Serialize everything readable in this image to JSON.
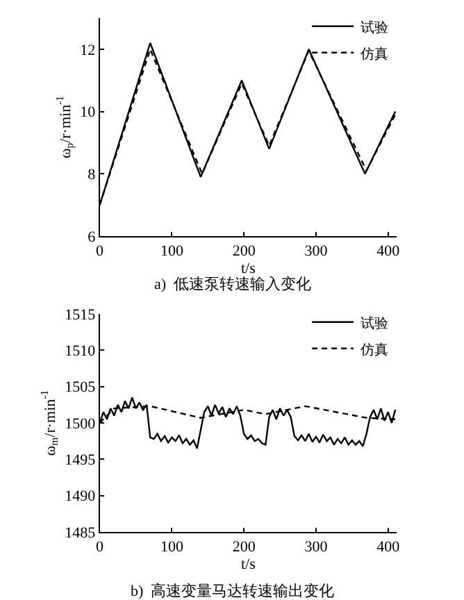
{
  "chart_data": [
    {
      "type": "line",
      "xlabel": "t/s",
      "ylabel": "ω$_{p}$/r·min$^{-1}$",
      "annotations": [
        "a)  低速泵转速输入变化"
      ],
      "xlim": [
        0,
        412
      ],
      "xticks": [
        0,
        100,
        200,
        300,
        400
      ],
      "ylim": [
        6,
        13
      ],
      "yticks": [
        6,
        8,
        10,
        12
      ],
      "legend": "top right",
      "series": [
        {
          "name": "试验",
          "color": "#000000",
          "line_style": "solid",
          "x": [
            0,
            70,
            140,
            197,
            235,
            290,
            368,
            410
          ],
          "values": [
            7,
            12.2,
            7.9,
            11,
            8.8,
            12,
            8,
            10
          ]
        },
        {
          "name": "仿真",
          "color": "#000000",
          "line_style": "dashed",
          "x": [
            0,
            70,
            142,
            197,
            235,
            290,
            370,
            410
          ],
          "values": [
            7,
            12,
            8,
            10.9,
            8.9,
            11.95,
            8.1,
            9.9
          ]
        }
      ]
    },
    {
      "type": "line",
      "xlabel": "t/s",
      "ylabel": "ω$_{m}$/r·min$^{-1}$",
      "annotations": [
        "b)  高速变量马达转速输出变化"
      ],
      "xlim": [
        0,
        412
      ],
      "xticks": [
        0,
        100,
        200,
        300,
        400
      ],
      "ylim": [
        1485,
        1515
      ],
      "yticks": [
        1485,
        1490,
        1495,
        1500,
        1505,
        1510,
        1515
      ],
      "legend": "top right",
      "series": [
        {
          "name": "试验",
          "color": "#000000",
          "line_style": "solid",
          "x": [
            0,
            5,
            10,
            15,
            20,
            25,
            30,
            35,
            40,
            45,
            50,
            55,
            60,
            65,
            70,
            75,
            80,
            85,
            90,
            95,
            100,
            105,
            110,
            115,
            120,
            125,
            130,
            135,
            140,
            145,
            150,
            155,
            160,
            165,
            170,
            175,
            180,
            185,
            190,
            195,
            200,
            205,
            210,
            215,
            220,
            225,
            230,
            235,
            240,
            245,
            250,
            255,
            260,
            265,
            270,
            275,
            280,
            285,
            290,
            295,
            300,
            305,
            310,
            315,
            320,
            325,
            330,
            335,
            340,
            345,
            350,
            355,
            360,
            365,
            370,
            375,
            380,
            385,
            390,
            395,
            400,
            405,
            410
          ],
          "values": [
            1500,
            1501.5,
            1500.5,
            1502,
            1501,
            1502.5,
            1501.5,
            1503,
            1502,
            1503.5,
            1502,
            1502.8,
            1501.8,
            1502.5,
            1498,
            1497.8,
            1498.5,
            1497.5,
            1498.2,
            1497.3,
            1498,
            1497.5,
            1498.3,
            1497.2,
            1497.8,
            1497,
            1497.6,
            1496.5,
            1499,
            1501.5,
            1502.3,
            1501,
            1502.5,
            1501.3,
            1502.2,
            1500.8,
            1502,
            1501.2,
            1502.3,
            1501,
            1498.5,
            1497.8,
            1498.3,
            1497.5,
            1497.8,
            1497.2,
            1497,
            1500.8,
            1501.8,
            1500.5,
            1502,
            1501,
            1501.8,
            1500.8,
            1498.2,
            1497.6,
            1498.3,
            1497.5,
            1498.5,
            1497.4,
            1498.1,
            1497.3,
            1498.4,
            1497.5,
            1498,
            1497,
            1497.8,
            1497.2,
            1498,
            1497,
            1497.6,
            1497,
            1497.5,
            1496.8,
            1498.5,
            1500.8,
            1501.8,
            1500.5,
            1502,
            1500.3,
            1501.5,
            1500,
            1501.8
          ]
        },
        {
          "name": "仿真",
          "color": "#000000",
          "line_style": "dashed",
          "x": [
            0,
            20,
            70,
            140,
            200,
            230,
            285,
            370,
            410
          ],
          "values": [
            1500,
            1502,
            1502.3,
            1500.7,
            1501.8,
            1501.2,
            1502.3,
            1500.7,
            1500.5
          ]
        }
      ]
    }
  ]
}
